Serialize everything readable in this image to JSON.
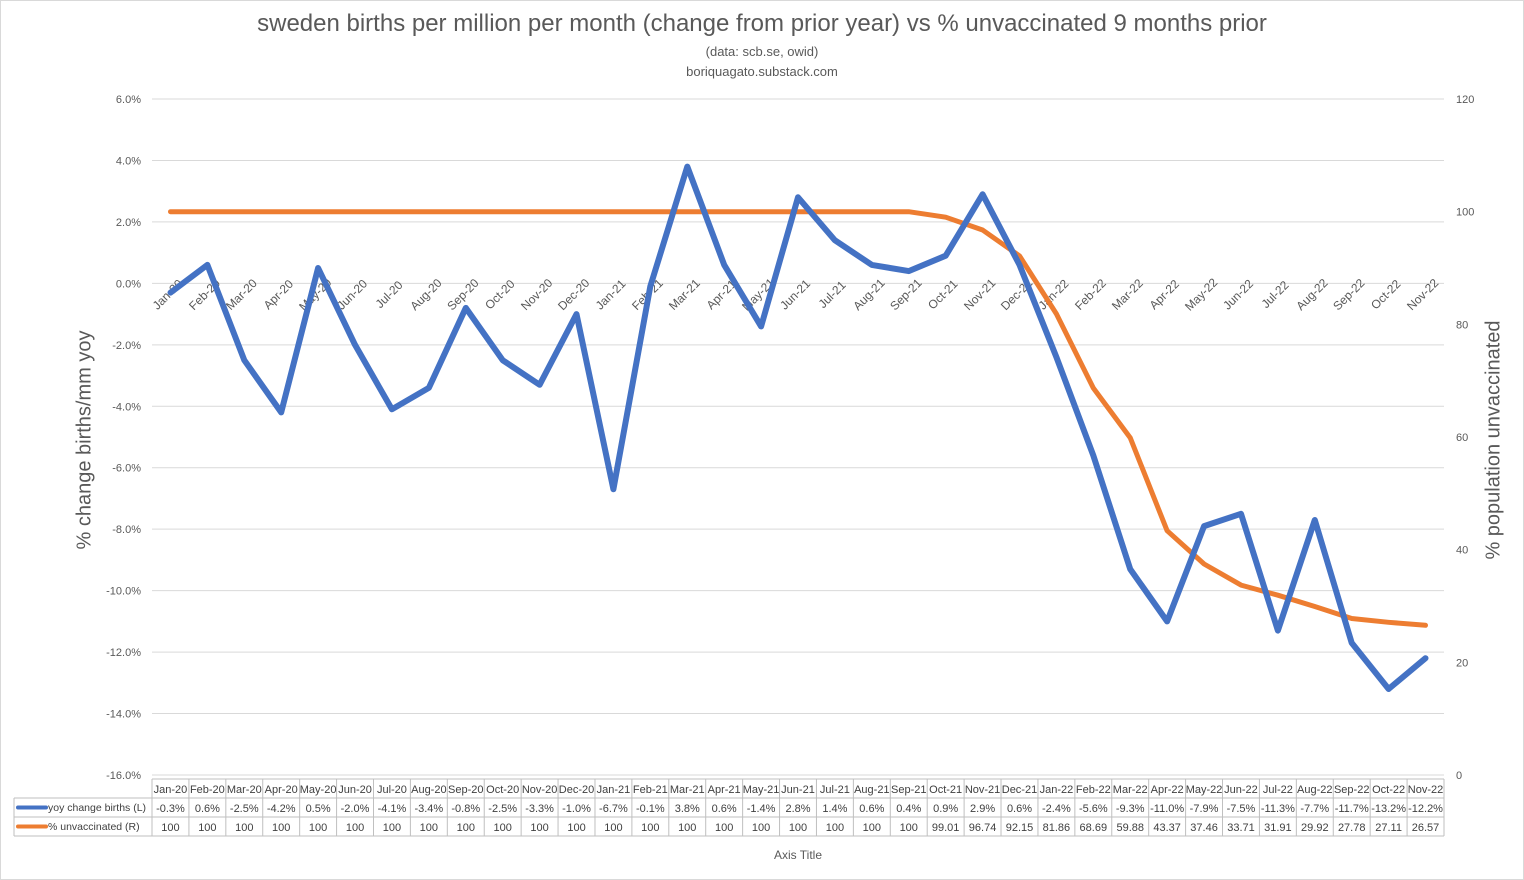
{
  "chart_data": {
    "type": "line",
    "title": "sweden births per million per month (change from prior year) vs % unvaccinated 9 months prior",
    "subtitle": "(data: scb.se, owid)",
    "source": "boriquagato.substack.com",
    "ylabel_left": "% change births/mm yoy",
    "ylabel_right": "% population unvaccinated",
    "xlabel": "Axis Title",
    "ylim_left": [
      -16,
      6
    ],
    "yticks_left": [
      "6.0%",
      "4.0%",
      "2.0%",
      "0.0%",
      "-2.0%",
      "-4.0%",
      "-6.0%",
      "-8.0%",
      "-10.0%",
      "-12.0%",
      "-14.0%",
      "-16.0%"
    ],
    "ylim_right": [
      0,
      120
    ],
    "yticks_right": [
      "120",
      "100",
      "80",
      "60",
      "40",
      "20",
      "0"
    ],
    "categories": [
      "Jan-20",
      "Feb-20",
      "Mar-20",
      "Apr-20",
      "May-20",
      "Jun-20",
      "Jul-20",
      "Aug-20",
      "Sep-20",
      "Oct-20",
      "Nov-20",
      "Dec-20",
      "Jan-21",
      "Feb-21",
      "Mar-21",
      "Apr-21",
      "May-21",
      "Jun-21",
      "Jul-21",
      "Aug-21",
      "Sep-21",
      "Oct-21",
      "Nov-21",
      "Dec-21",
      "Jan-22",
      "Feb-22",
      "Mar-22",
      "Apr-22",
      "May-22",
      "Jun-22",
      "Jul-22",
      "Aug-22",
      "Sep-22",
      "Oct-22",
      "Nov-22"
    ],
    "series": [
      {
        "name": "yoy change births (L)",
        "axis": "left",
        "color": "#4472c4",
        "values": [
          -0.3,
          0.6,
          -2.5,
          -4.2,
          0.5,
          -2.0,
          -4.1,
          -3.4,
          -0.8,
          -2.5,
          -3.3,
          -1.0,
          -6.7,
          -0.1,
          3.8,
          0.6,
          -1.4,
          2.8,
          1.4,
          0.6,
          0.4,
          0.9,
          2.9,
          0.6,
          -2.4,
          -5.6,
          -9.3,
          -11.0,
          -7.9,
          -7.5,
          -11.3,
          -7.7,
          -11.7,
          -13.2,
          -12.2
        ],
        "labels": [
          "-0.3%",
          "0.6%",
          "-2.5%",
          "-4.2%",
          "0.5%",
          "-2.0%",
          "-4.1%",
          "-3.4%",
          "-0.8%",
          "-2.5%",
          "-3.3%",
          "-1.0%",
          "-6.7%",
          "-0.1%",
          "3.8%",
          "0.6%",
          "-1.4%",
          "2.8%",
          "1.4%",
          "0.6%",
          "0.4%",
          "0.9%",
          "2.9%",
          "0.6%",
          "-2.4%",
          "-5.6%",
          "-9.3%",
          "-11.0%",
          "-7.9%",
          "-7.5%",
          "-11.3%",
          "-7.7%",
          "-11.7%",
          "-13.2%",
          "-12.2%"
        ]
      },
      {
        "name": "% unvaccinated (R)",
        "axis": "right",
        "color": "#ed7d31",
        "values": [
          100,
          100,
          100,
          100,
          100,
          100,
          100,
          100,
          100,
          100,
          100,
          100,
          100,
          100,
          100,
          100,
          100,
          100,
          100,
          100,
          100,
          99.01,
          96.74,
          92.15,
          81.86,
          68.69,
          59.88,
          43.37,
          37.46,
          33.71,
          31.91,
          29.92,
          27.78,
          27.11,
          26.57
        ],
        "labels": [
          "100",
          "100",
          "100",
          "100",
          "100",
          "100",
          "100",
          "100",
          "100",
          "100",
          "100",
          "100",
          "100",
          "100",
          "100",
          "100",
          "100",
          "100",
          "100",
          "100",
          "100",
          "99.01",
          "96.74",
          "92.15",
          "81.86",
          "68.69",
          "59.88",
          "43.37",
          "37.46",
          "33.71",
          "31.91",
          "29.92",
          "27.78",
          "27.11",
          "26.57"
        ]
      }
    ]
  }
}
